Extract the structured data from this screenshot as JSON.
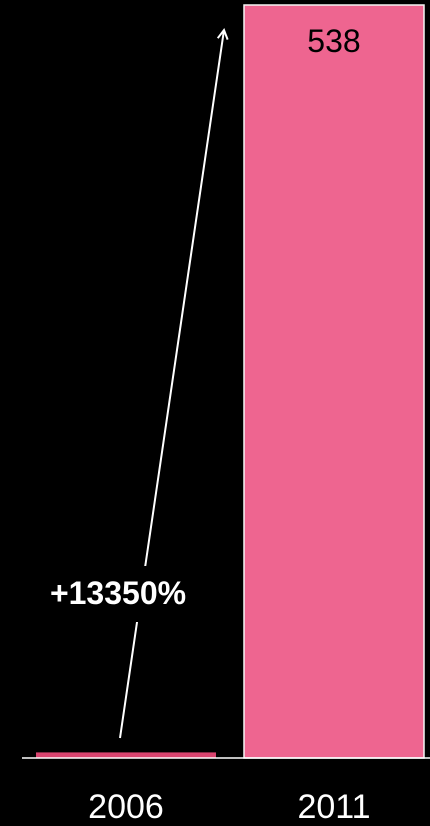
{
  "chart_data": {
    "type": "bar",
    "categories": [
      "2006",
      "2011"
    ],
    "values": [
      4,
      538
    ],
    "data_labels": [
      "",
      "538"
    ],
    "ylim": [
      0,
      538
    ],
    "grid": false,
    "legend": "none",
    "title": "",
    "xlabel": "",
    "ylabel": "",
    "annotation": "+13350%",
    "colors": {
      "background": "#000000",
      "bar_fill": "#ee6590",
      "bar_2006_fill": "#d9446f",
      "bar_edge": "#f5f5f5",
      "axis": "#ffffff",
      "text": "#ffffff",
      "data_label_text": "#000000",
      "arrow": "#ffffff"
    }
  }
}
